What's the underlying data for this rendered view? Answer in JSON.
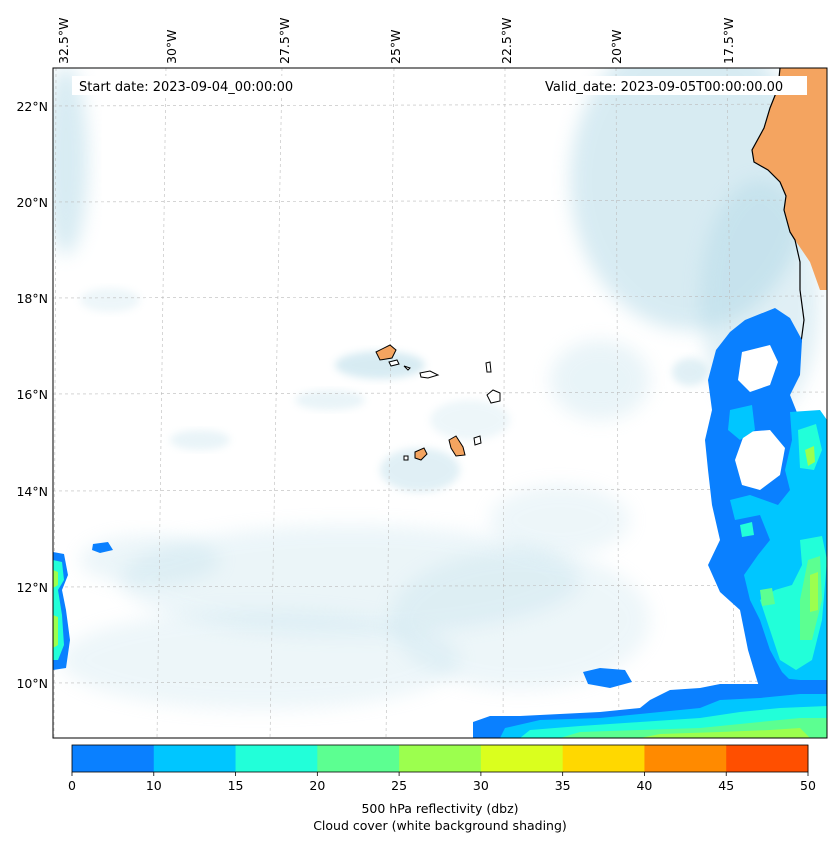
{
  "map": {
    "start_date": "Start date: 2023-09-04_00:00:00",
    "valid_date": "Valid_date: 2023-09-05T00:00:00.00",
    "lon_labels": [
      "32.5°W",
      "30°W",
      "27.5°W",
      "25°W",
      "22.5°W",
      "20°W",
      "17.5°W"
    ],
    "lat_labels": [
      "22°N",
      "20°N",
      "18°N",
      "16°N",
      "14°N",
      "12°N",
      "10°N"
    ],
    "land_color": "#f4a460",
    "cloud_color": "#a8d4e4"
  },
  "colorbar": {
    "ticks": [
      "0",
      "10",
      "15",
      "20",
      "25",
      "30",
      "35",
      "40",
      "45",
      "50"
    ],
    "colors": [
      "#0a80ff",
      "#00c6ff",
      "#22ffd9",
      "#5cff91",
      "#9cff4e",
      "#daff1e",
      "#ffd800",
      "#ff8a00",
      "#ff4f00"
    ],
    "label_line1": "500 hPa reflectivity (dbz)",
    "label_line2": "Cloud cover (white background shading)"
  }
}
